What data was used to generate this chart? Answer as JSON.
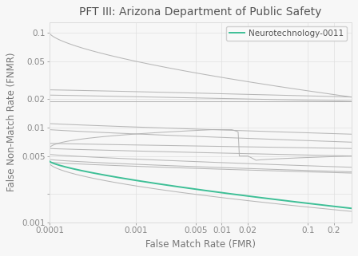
{
  "title": "PFT III: Arizona Department of Public Safety",
  "xlabel": "False Match Rate (FMR)",
  "ylabel": "False Non-Match Rate (FNMR)",
  "legend_label": "Neurotechnology-0011",
  "highlight_color": "#3dbf96",
  "gray_color": "#b0b0b0",
  "background_color": "#f7f7f7",
  "title_fontsize": 10,
  "label_fontsize": 8.5,
  "legend_fontsize": 7.5,
  "tick_fontsize": 7.5
}
